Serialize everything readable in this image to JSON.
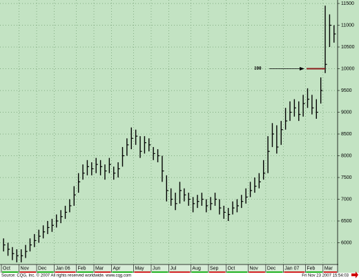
{
  "chart_data": {
    "type": "ohlc",
    "categories": [
      "Oct",
      null,
      null,
      null,
      "Nov",
      null,
      null,
      null,
      "Dec",
      null,
      null,
      null,
      "Jan 06",
      null,
      null,
      null,
      null,
      "Feb",
      null,
      null,
      null,
      "Mar",
      null,
      null,
      null,
      "Apr",
      null,
      null,
      null,
      null,
      "May",
      null,
      null,
      null,
      "Jun",
      null,
      null,
      null,
      "Jul",
      null,
      null,
      null,
      null,
      "Aug",
      null,
      null,
      null,
      "Sep",
      null,
      null,
      null,
      "Oct",
      null,
      null,
      null,
      null,
      "Nov",
      null,
      null,
      null,
      "Dec",
      null,
      null,
      null,
      "Jan 07",
      null,
      null,
      null,
      null,
      "Feb",
      null,
      null,
      null,
      "Mar",
      null,
      null
    ],
    "high": [
      6100,
      6000,
      5900,
      5850,
      5850,
      5950,
      6100,
      6200,
      6300,
      6400,
      6500,
      6550,
      6650,
      6750,
      6850,
      7000,
      7300,
      7600,
      7800,
      7900,
      7850,
      7950,
      7900,
      7800,
      7950,
      7750,
      7850,
      8200,
      8400,
      8650,
      8600,
      8450,
      8450,
      8400,
      8200,
      8150,
      8000,
      7550,
      7250,
      7150,
      7400,
      7250,
      7150,
      7050,
      7100,
      7150,
      7000,
      7050,
      7150,
      7000,
      6850,
      6800,
      6950,
      7000,
      7100,
      7250,
      7400,
      7500,
      7600,
      7900,
      8450,
      8750,
      8700,
      8800,
      9100,
      9250,
      9300,
      9250,
      9400,
      9550,
      9400,
      9300,
      9800,
      11450,
      11250,
      11000
    ],
    "low": [
      5800,
      5700,
      5600,
      5550,
      5550,
      5650,
      5800,
      5900,
      6000,
      6100,
      6200,
      6250,
      6350,
      6450,
      6550,
      6700,
      6850,
      7150,
      7450,
      7550,
      7550,
      7600,
      7550,
      7450,
      7600,
      7450,
      7500,
      7750,
      8000,
      8150,
      8250,
      7950,
      8050,
      8100,
      7900,
      7850,
      7400,
      6950,
      6850,
      6750,
      6900,
      6950,
      6850,
      6700,
      6800,
      6850,
      6700,
      6750,
      6850,
      6650,
      6550,
      6500,
      6650,
      6700,
      6800,
      6900,
      7050,
      7150,
      7250,
      7450,
      7600,
      8200,
      8050,
      8250,
      8600,
      8800,
      8900,
      8800,
      8900,
      9100,
      8950,
      8850,
      9200,
      9900,
      10500,
      10600
    ],
    "close": [
      5950,
      5850,
      5750,
      5700,
      5700,
      5800,
      5950,
      6050,
      6150,
      6250,
      6350,
      6400,
      6500,
      6600,
      6700,
      6850,
      7100,
      7400,
      7600,
      7750,
      7700,
      7800,
      7750,
      7650,
      7800,
      7600,
      7700,
      8000,
      8250,
      8400,
      8450,
      8100,
      8300,
      8250,
      8050,
      8000,
      7650,
      7200,
      7000,
      6900,
      7200,
      7100,
      7000,
      6900,
      6950,
      7000,
      6850,
      6900,
      7000,
      6800,
      6700,
      6650,
      6800,
      6850,
      6950,
      7050,
      7200,
      7300,
      7400,
      7600,
      8100,
      8500,
      8200,
      8600,
      8800,
      9000,
      9100,
      8950,
      9200,
      9300,
      9100,
      9000,
      9500,
      10100,
      11000,
      10800
    ],
    "color": "#000000",
    "background": "#c3e3c3",
    "ylim": [
      5500,
      11580
    ],
    "yticks": [
      6000,
      6500,
      7000,
      7500,
      8000,
      8500,
      9000,
      9500,
      10000,
      10500,
      11000,
      11500
    ],
    "grid": true,
    "annotation": {
      "text": "100",
      "y": 10000,
      "color": "#8b1a1a"
    },
    "source": "Source: CQG, Inc. © 2007 All rights reserved worldwide. www.cqg.com",
    "timestamp": "Fri Nov 23 2007 15:54:03"
  }
}
